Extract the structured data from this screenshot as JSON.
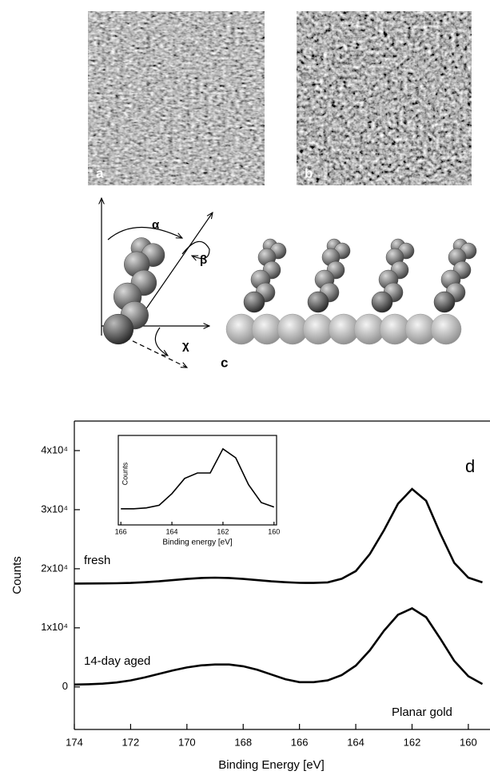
{
  "panels": {
    "a": "a",
    "b": "b",
    "c": "c"
  },
  "angles": [
    "α",
    "β",
    "χ"
  ],
  "chart_data": [
    {
      "type": "line",
      "xlabel": "Binding Energy [eV]",
      "ylabel": "Counts",
      "x": [
        174,
        173.5,
        173,
        172.5,
        172,
        171.5,
        171,
        170.5,
        170,
        169.5,
        169,
        168.5,
        168,
        167.5,
        167,
        166.5,
        166,
        165.5,
        165,
        164.5,
        164,
        163.5,
        163,
        162.5,
        162,
        161.5,
        161,
        160.5,
        160,
        159.5
      ],
      "series": [
        {
          "name": "fresh",
          "color": "#000000",
          "values": [
            17500,
            17510,
            17520,
            17550,
            17600,
            17720,
            17870,
            18080,
            18280,
            18440,
            18500,
            18440,
            18280,
            18080,
            17870,
            17720,
            17620,
            17600,
            17700,
            18300,
            19600,
            22500,
            26500,
            31000,
            33500,
            31500,
            26000,
            21000,
            18500,
            17700
          ]
        },
        {
          "name": "14-day aged",
          "color": "#000000",
          "values": [
            400,
            450,
            550,
            750,
            1100,
            1600,
            2200,
            2800,
            3300,
            3650,
            3800,
            3800,
            3500,
            2900,
            2100,
            1300,
            800,
            800,
            1100,
            2000,
            3600,
            6200,
            9500,
            12200,
            13300,
            11800,
            8200,
            4400,
            1800,
            500
          ]
        }
      ],
      "xlim": [
        174,
        159.23
      ],
      "xticks": [
        174,
        172,
        170,
        168,
        166,
        164,
        162,
        160
      ],
      "ylim": [
        -7200,
        45000
      ],
      "yticks": [
        0,
        {
          "value": 10000,
          "label": "1x10⁴"
        },
        {
          "value": 20000,
          "label": "2x10⁴"
        },
        {
          "value": 30000,
          "label": "3x10⁴"
        },
        {
          "value": 40000,
          "label": "4x10⁴"
        }
      ],
      "annotations": [
        "d",
        "Planar gold"
      ]
    },
    {
      "type": "line",
      "xlabel": "Binding energy [eV]",
      "ylabel": "Counts",
      "x": [
        166,
        165.5,
        165,
        164.5,
        164,
        163.5,
        163,
        162.5,
        162,
        161.5,
        161,
        160.5,
        160
      ],
      "series": [
        {
          "color": "#000000",
          "values": [
            18,
            18,
            19,
            22,
            35,
            52,
            58,
            58,
            85,
            75,
            45,
            25,
            20
          ]
        }
      ],
      "xlim": [
        166.1,
        159.9
      ],
      "xticks": [
        166,
        164,
        162,
        160
      ],
      "ylim": [
        0,
        100
      ]
    }
  ]
}
